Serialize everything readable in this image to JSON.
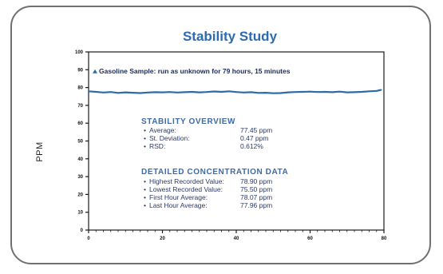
{
  "chart_data": {
    "type": "line",
    "title": "Stability Study",
    "ylabel": "PPM",
    "xlabel": "",
    "xlim": [
      0,
      80
    ],
    "ylim": [
      0,
      100
    ],
    "x_ticks": [
      0,
      20,
      40,
      60,
      80
    ],
    "y_ticks": [
      0,
      10,
      20,
      30,
      40,
      50,
      60,
      70,
      80,
      90,
      100
    ],
    "annotation": "Gasoline Sample: run as unknown for 79 hours, 15 minutes",
    "series": [
      {
        "color": "#2e6aa8",
        "x": [
          0,
          2,
          4,
          6,
          8,
          10,
          12,
          14,
          16,
          18,
          20,
          22,
          24,
          26,
          28,
          30,
          32,
          34,
          36,
          38,
          40,
          42,
          44,
          46,
          48,
          50,
          52,
          54,
          56,
          58,
          60,
          62,
          64,
          66,
          68,
          70,
          72,
          74,
          76,
          78,
          79.25
        ],
        "y": [
          77.9,
          77.6,
          77.2,
          77.5,
          77.0,
          77.3,
          77.1,
          76.9,
          77.2,
          77.4,
          77.3,
          77.5,
          77.2,
          77.4,
          77.6,
          77.3,
          77.5,
          77.8,
          77.6,
          77.9,
          77.5,
          77.2,
          77.4,
          77.0,
          77.1,
          76.8,
          76.9,
          77.3,
          77.5,
          77.6,
          77.7,
          77.5,
          77.6,
          77.4,
          77.7,
          77.3,
          77.4,
          77.6,
          77.9,
          78.1,
          78.7
        ]
      }
    ]
  },
  "overview": {
    "heading": "STABILITY OVERVIEW",
    "items": [
      {
        "label": "Average:",
        "value": "77.45 ppm"
      },
      {
        "label": "St. Deviation:",
        "value": "0.47 ppm"
      },
      {
        "label": "RSD:",
        "value": "0.612%"
      }
    ]
  },
  "detail": {
    "heading": "DETAILED CONCENTRATION DATA",
    "items": [
      {
        "label": "Highest Recorded Value:",
        "value": "78.90 ppm"
      },
      {
        "label": "Lowest Recorded Value:",
        "value": "75.50 ppm"
      },
      {
        "label": "First Hour Average:",
        "value": "78.07 ppm"
      },
      {
        "label": "Last Hour Average:",
        "value": "77.96 ppm"
      }
    ]
  }
}
